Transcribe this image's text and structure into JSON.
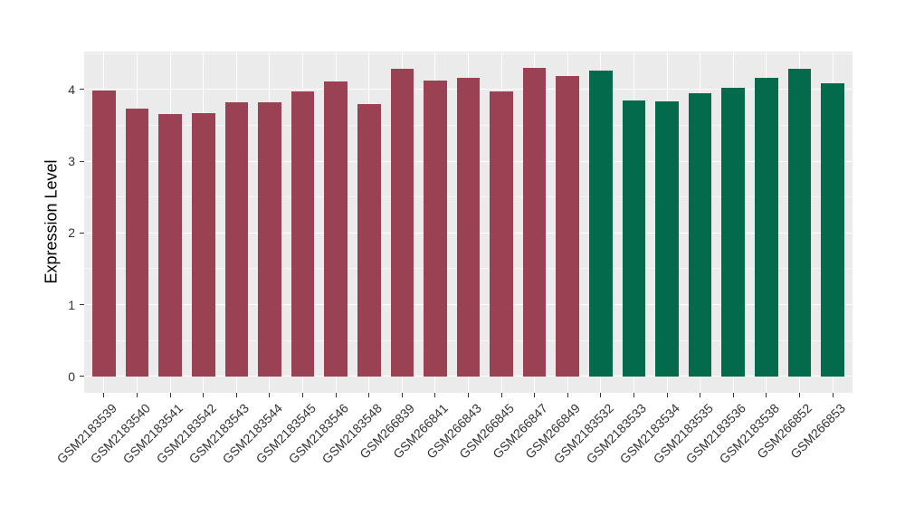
{
  "chart_data": {
    "type": "bar",
    "title": "",
    "xlabel": "",
    "ylabel": "Expression Level",
    "categories": [
      "GSM2183539",
      "GSM2183540",
      "GSM2183541",
      "GSM2183542",
      "GSM2183543",
      "GSM2183544",
      "GSM2183545",
      "GSM2183546",
      "GSM2183548",
      "GSM266839",
      "GSM266841",
      "GSM266843",
      "GSM266845",
      "GSM266847",
      "GSM266849",
      "GSM2183532",
      "GSM2183533",
      "GSM2183534",
      "GSM2183535",
      "GSM2183536",
      "GSM2183538",
      "GSM266852",
      "GSM266853"
    ],
    "values": [
      3.99,
      3.74,
      3.66,
      3.67,
      3.82,
      3.82,
      3.98,
      4.11,
      3.8,
      4.29,
      4.12,
      4.16,
      3.97,
      4.3,
      4.19,
      4.27,
      3.85,
      3.83,
      3.95,
      4.02,
      4.16,
      4.29,
      4.09
    ],
    "bar_groups": [
      "red",
      "red",
      "red",
      "red",
      "red",
      "red",
      "red",
      "red",
      "red",
      "red",
      "red",
      "red",
      "red",
      "red",
      "red",
      "green",
      "green",
      "green",
      "green",
      "green",
      "green",
      "green",
      "green"
    ],
    "colors": {
      "red": "#9A4253",
      "green": "#036A4B"
    },
    "yticks": [
      0,
      1,
      2,
      3,
      4
    ],
    "ylim": [
      -0.23,
      4.53
    ],
    "bar_rel_width": 0.7,
    "panel_bg": "#EBEBEB",
    "page_bg": "#FFFFFF",
    "grid": {
      "major": "#FFFFFF",
      "minor": "rgba(255,255,255,0.55)",
      "minor_step": 0.5
    },
    "axis_text_color": "#333333",
    "tick_mark_color": "#333333",
    "x_tick_rotation_deg": 45,
    "legend": "none"
  }
}
